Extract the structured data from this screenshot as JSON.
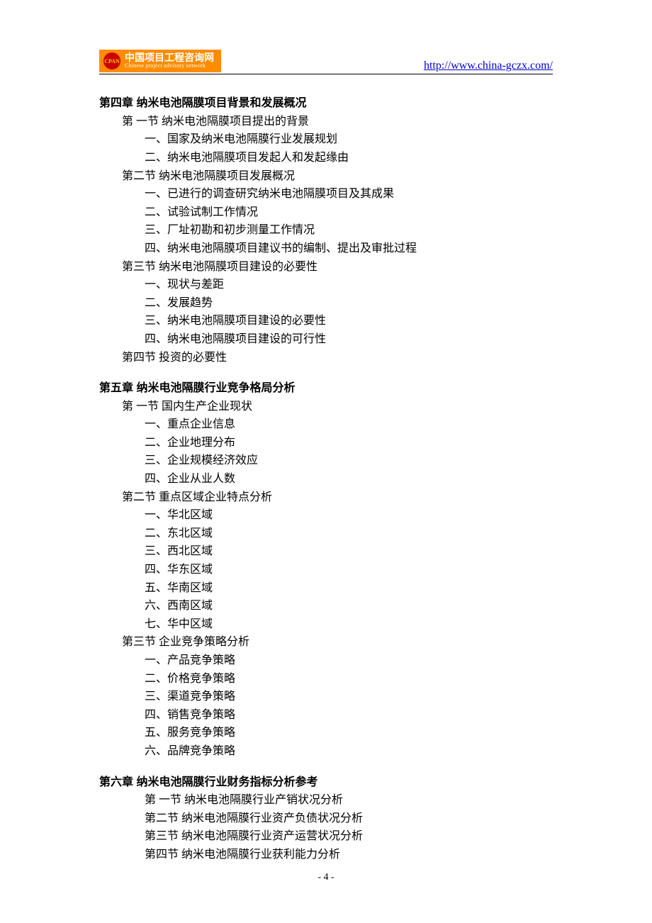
{
  "header": {
    "logo_cn": "中国项目工程咨询网",
    "logo_en": "Chinese project advisory network",
    "logo_badge": "CPAN",
    "url": "http://www.china-gczx.com/"
  },
  "chapters": [
    {
      "title": "第四章 纳米电池隔膜项目背景和发展概况",
      "sections": [
        {
          "label": "第 一节 纳米电池隔膜项目提出的背景",
          "items": [
            "一、国家及纳米电池隔膜行业发展规划",
            "二、纳米电池隔膜项目发起人和发起缘由"
          ]
        },
        {
          "label": "第二节 纳米电池隔膜项目发展概况",
          "items": [
            "一、已进行的调查研究纳米电池隔膜项目及其成果",
            "二、试验试制工作情况",
            "三、厂址初勘和初步测量工作情况",
            "四、纳米电池隔膜项目建议书的编制、提出及审批过程"
          ]
        },
        {
          "label": "第三节 纳米电池隔膜项目建设的必要性",
          "items": [
            "一、现状与差距",
            "二、发展趋势",
            "三、纳米电池隔膜项目建设的必要性",
            "四、纳米电池隔膜项目建设的可行性"
          ]
        },
        {
          "label": "第四节  投资的必要性",
          "items": []
        }
      ]
    },
    {
      "title": "第五章 纳米电池隔膜行业竞争格局分析",
      "sections": [
        {
          "label": "第 一节  国内生产企业现状",
          "items": [
            "一、重点企业信息",
            "二、企业地理分布",
            "三、企业规模经济效应",
            "四、企业从业人数"
          ]
        },
        {
          "label": "第二节  重点区域企业特点分析",
          "items": [
            "一、华北区域",
            "二、东北区域",
            "三、西北区域",
            "四、华东区域",
            "五、华南区域",
            "六、西南区域",
            "七、华中区域"
          ]
        },
        {
          "label": "第三节  企业竞争策略分析",
          "items": [
            "一、产品竞争策略",
            "二、价格竞争策略",
            "三、渠道竞争策略",
            "四、销售竞争策略",
            "五、服务竞争策略",
            "六、品牌竞争策略"
          ]
        }
      ]
    },
    {
      "title": "第六章 纳米电池隔膜行业财务指标分析参考",
      "sections_flat": [
        "第 一节 纳米电池隔膜行业产销状况分析",
        "第二节 纳米电池隔膜行业资产负债状况分析",
        "第三节 纳米电池隔膜行业资产运营状况分析",
        "第四节 纳米电池隔膜行业获利能力分析"
      ]
    }
  ],
  "footer": {
    "page_number": "- 4 -"
  },
  "styles": {
    "body_fontsize": 16,
    "title_fontsize": 16,
    "footer_fontsize": 14,
    "text_color": "#000000",
    "link_color": "#0000cc",
    "logo_bg": "#ff8c00",
    "logo_circle_bg": "#cc0000",
    "background": "#ffffff"
  }
}
